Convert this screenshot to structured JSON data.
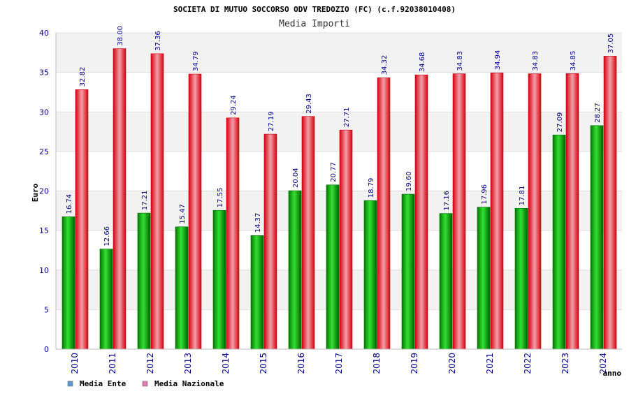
{
  "chart_data": {
    "type": "bar",
    "title": "SOCIETA DI MUTUO SOCCORSO ODV TREDOZIO (FC) (c.f.92038010408)",
    "subtitle": "Media Importi",
    "xlabel": "anno",
    "ylabel": "Euro",
    "ylim": [
      0,
      40
    ],
    "yticks": [
      0,
      5,
      10,
      15,
      20,
      25,
      30,
      35,
      40
    ],
    "grid": true,
    "legend_position": "bottom-left",
    "categories": [
      "2010",
      "2011",
      "2012",
      "2013",
      "2014",
      "2015",
      "2016",
      "2017",
      "2018",
      "2019",
      "2020",
      "2021",
      "2022",
      "2023",
      "2024"
    ],
    "series": [
      {
        "name": "Media Ente",
        "legend_color": "#5b9bd5",
        "bar_color": "#00a800",
        "values": [
          16.74,
          12.66,
          17.21,
          15.47,
          17.55,
          14.37,
          20.04,
          20.77,
          18.79,
          19.6,
          17.16,
          17.96,
          17.81,
          27.09,
          28.27
        ],
        "labels": [
          "16.74",
          "12.66",
          "17.21",
          "15.47",
          "17.55",
          "14.37",
          "20.04",
          "20.77",
          "18.79",
          "19.60",
          "17.16",
          "17.96",
          "17.81",
          "27.09",
          "28.27"
        ]
      },
      {
        "name": "Media Nazionale",
        "legend_color": "#e080b0",
        "bar_color": "#e8202e",
        "values": [
          32.82,
          38.0,
          37.36,
          34.79,
          29.24,
          27.19,
          29.43,
          27.71,
          34.32,
          34.68,
          34.83,
          34.94,
          34.83,
          34.85,
          37.05
        ],
        "labels": [
          "32.82",
          "38.00",
          "37.36",
          "34.79",
          "29.24",
          "27.19",
          "29.43",
          "27.71",
          "34.32",
          "34.68",
          "34.83",
          "34.94",
          "34.83",
          "34.85",
          "37.05"
        ]
      }
    ]
  }
}
